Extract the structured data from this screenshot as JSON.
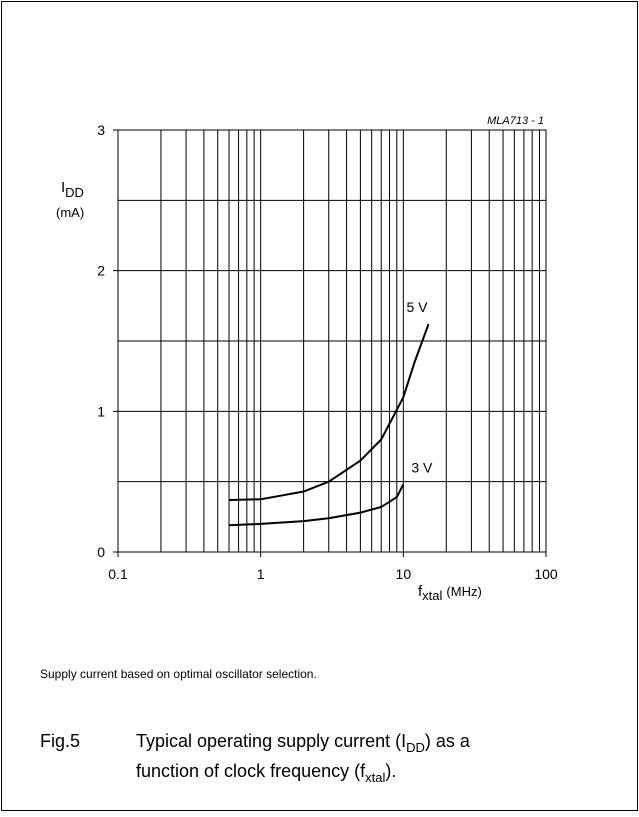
{
  "chart_data": {
    "type": "line",
    "annotation": "MLA713 - 1",
    "ylabel_symbol": "I",
    "ylabel_subscript": "DD",
    "ylabel_unit": "(mA)",
    "xlabel_symbol": "f",
    "xlabel_subscript": "xtal",
    "xlabel_unit": "(MHz)",
    "xscale": "log",
    "xlim": [
      0.1,
      100
    ],
    "xticks": [
      0.1,
      1,
      10,
      100
    ],
    "x_minor_ticks": [
      0.2,
      0.3,
      0.4,
      0.5,
      0.6,
      0.7,
      0.8,
      0.9,
      2,
      3,
      4,
      5,
      6,
      7,
      8,
      9,
      20,
      30,
      40,
      50,
      60,
      70,
      80,
      90
    ],
    "ylim": [
      0,
      3
    ],
    "yticks": [
      0,
      1,
      2,
      3
    ],
    "y_minor_ticks": [
      0.5,
      1.5,
      2.5
    ],
    "grid": true,
    "series": [
      {
        "name": "5 V",
        "color": "#000000",
        "x": [
          0.6,
          1,
          2,
          3,
          5,
          7,
          10,
          12,
          15
        ],
        "values": [
          0.37,
          0.375,
          0.43,
          0.5,
          0.65,
          0.8,
          1.1,
          1.35,
          1.62
        ]
      },
      {
        "name": "3 V",
        "color": "#000000",
        "x": [
          0.6,
          1,
          2,
          3,
          5,
          7,
          9,
          10
        ],
        "values": [
          0.19,
          0.2,
          0.22,
          0.24,
          0.28,
          0.32,
          0.39,
          0.48
        ]
      }
    ]
  },
  "note": "Supply current based on optimal oscillator selection.",
  "caption": {
    "label": "Fig.5",
    "line1": [
      {
        "text": "Typical operating supply current (I"
      },
      {
        "text": "DD",
        "sub": true
      },
      {
        "text": ") as a"
      }
    ],
    "line2": [
      {
        "text": "function of clock frequency (f"
      },
      {
        "text": "xtal",
        "sub": true
      },
      {
        "text": ")."
      }
    ]
  }
}
